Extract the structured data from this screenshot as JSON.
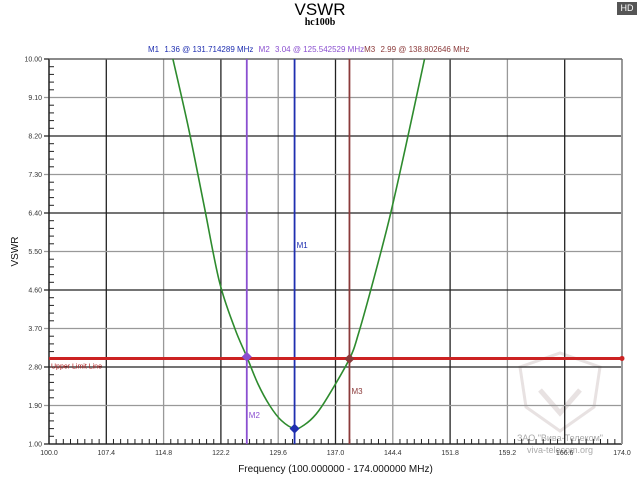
{
  "header": {
    "title": "VSWR",
    "subtitle": "hc100b",
    "hd_badge": "HD"
  },
  "markers_readout": {
    "m1": {
      "label": "M1",
      "value": "1.36 @ 131.714289 MHz",
      "color": "#1f2fb0"
    },
    "m2": {
      "label": "M2",
      "value": "3.04 @ 125.542529 MHz",
      "color": "#8a4fd0"
    },
    "m3": {
      "label": "M3",
      "value": "2.99 @ 138.802646 MHz",
      "color": "#8b3a3a"
    }
  },
  "watermark": {
    "line1": "ЗАО \"Вива-Телеком\"",
    "line2": "viva-telecom.org"
  },
  "chart_data": {
    "type": "line",
    "title": "VSWR",
    "subtitle": "hc100b",
    "xlabel": "Frequency (100.000000 - 174.000000 MHz)",
    "ylabel": "VSWR",
    "xlim": [
      100.0,
      174.0
    ],
    "ylim": [
      1.0,
      10.0
    ],
    "grid": true,
    "x_ticks": [
      "100.0",
      "107.4",
      "114.8",
      "122.2",
      "129.6",
      "137.0",
      "144.4",
      "151.8",
      "159.2",
      "166.6",
      "174.0"
    ],
    "y_ticks": [
      "1.00",
      "1.90",
      "2.80",
      "3.70",
      "4.60",
      "5.50",
      "6.40",
      "7.30",
      "8.20",
      "9.10",
      "10.00"
    ],
    "series": [
      {
        "name": "VSWR",
        "color": "#2e8b2e",
        "x": [
          116.0,
          118.0,
          120.0,
          122.0,
          124.0,
          125.54,
          127.0,
          128.5,
          130.0,
          131.71,
          133.0,
          134.5,
          136.0,
          138.8,
          140.0,
          142.0,
          144.0,
          146.0,
          148.5
        ],
        "y": [
          10.0,
          8.4,
          6.6,
          4.8,
          3.7,
          3.04,
          2.4,
          1.9,
          1.55,
          1.36,
          1.45,
          1.7,
          2.1,
          2.99,
          3.6,
          4.9,
          6.3,
          7.9,
          10.0
        ]
      }
    ],
    "reference_lines": [
      {
        "name": "Upper Limit Line",
        "orientation": "horizontal",
        "value": 3.0,
        "color": "#cc2222"
      }
    ],
    "markers": [
      {
        "name": "M1",
        "x": 131.714289,
        "y": 1.36,
        "color": "#1f2fb0"
      },
      {
        "name": "M2",
        "x": 125.542529,
        "y": 3.04,
        "color": "#8a4fd0"
      },
      {
        "name": "M3",
        "x": 138.802646,
        "y": 2.99,
        "color": "#8b3a3a"
      }
    ]
  }
}
